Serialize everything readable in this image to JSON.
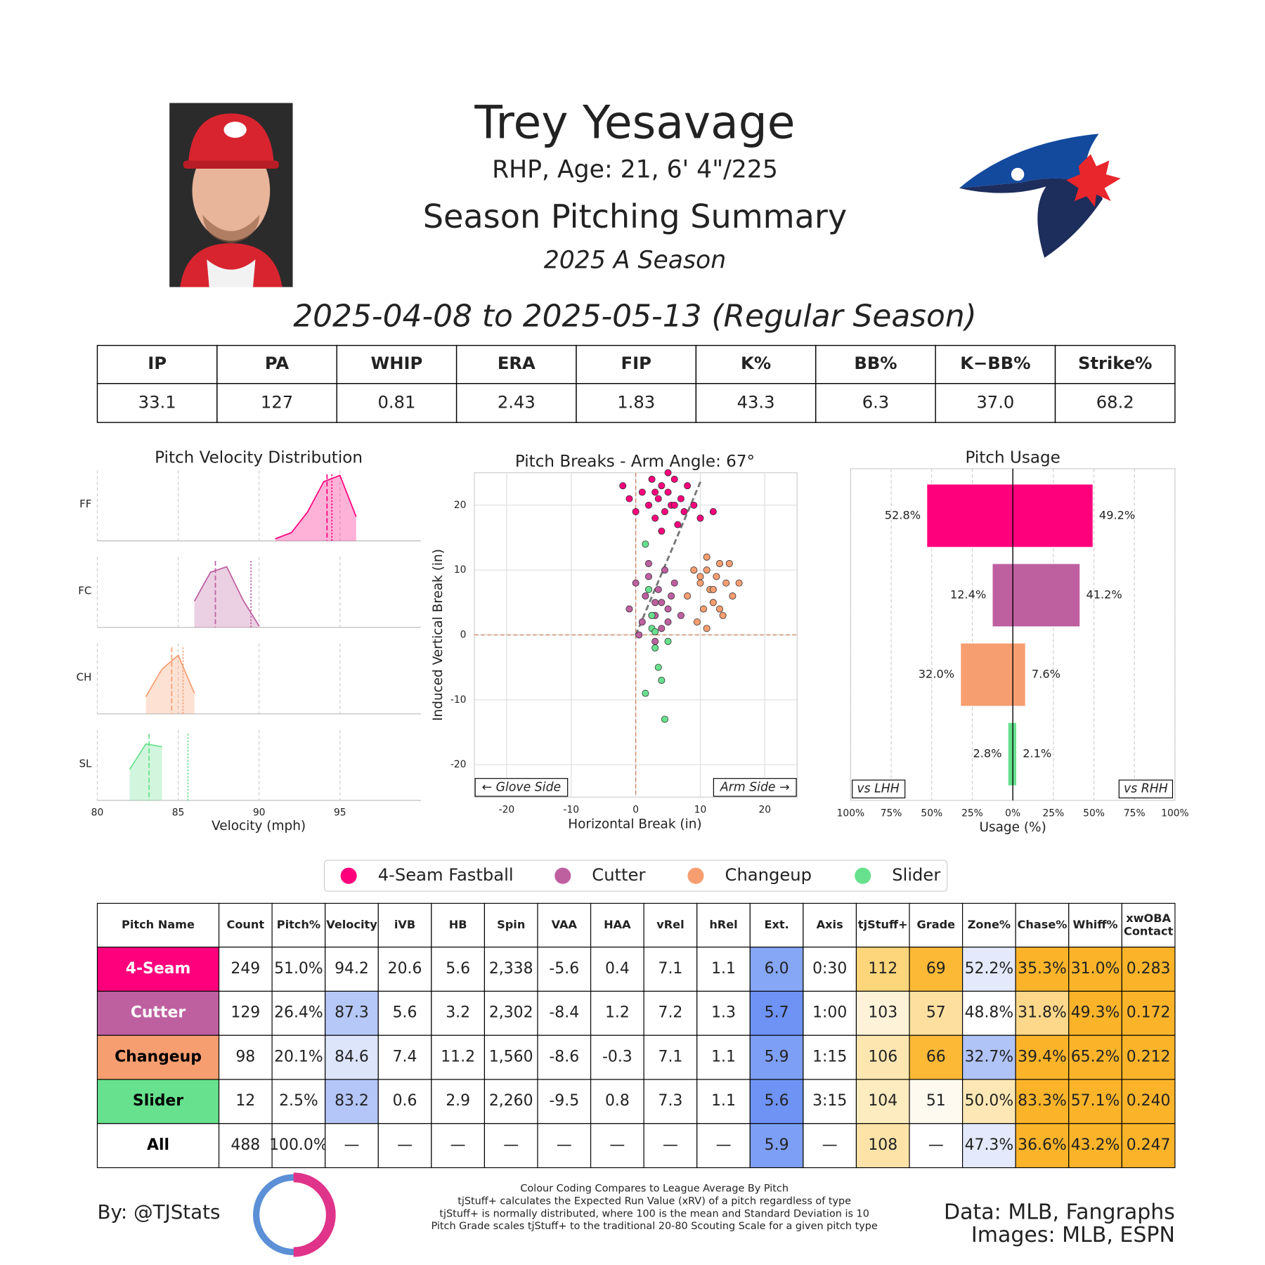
{
  "header": {
    "name": "Trey Yesavage",
    "bio": "RHP, Age: 21, 6' 4\"/225",
    "title": "Season Pitching Summary",
    "season": "2025 A Season",
    "dates": "2025-04-08 to 2025-05-13 (Regular Season)"
  },
  "stats_table": {
    "columns": [
      "IP",
      "PA",
      "WHIP",
      "ERA",
      "FIP",
      "K%",
      "BB%",
      "K−BB%",
      "Strike%"
    ],
    "values": [
      "33.1",
      "127",
      "0.81",
      "2.43",
      "1.83",
      "43.3",
      "6.3",
      "37.0",
      "68.2"
    ]
  },
  "chart_data": [
    {
      "type": "ridgeline",
      "title": "Pitch Velocity Distribution",
      "xlabel": "Velocity (mph)",
      "x": [
        80,
        81,
        82,
        83,
        84,
        85,
        86,
        87,
        88,
        89,
        90,
        91,
        92,
        93,
        94,
        95,
        96,
        97
      ],
      "xlim": [
        80,
        100
      ],
      "xticks": [
        80,
        85,
        90,
        95
      ],
      "grid": true,
      "series": [
        {
          "name": "FF",
          "color": "#ff007d",
          "values": [
            null,
            null,
            null,
            null,
            null,
            null,
            null,
            null,
            null,
            null,
            null,
            0.03,
            0.12,
            0.42,
            0.86,
            0.95,
            0.35,
            null
          ],
          "mean": 94.2,
          "league_mean": 94.5
        },
        {
          "name": "FC",
          "color": "#be5fa0",
          "values": [
            null,
            null,
            null,
            null,
            null,
            null,
            0.38,
            0.8,
            0.88,
            0.4,
            0.02,
            null,
            null,
            null,
            null,
            null,
            null,
            null
          ],
          "mean": 87.3,
          "league_mean": 89.5
        },
        {
          "name": "CH",
          "color": "#f79e70",
          "values": [
            null,
            null,
            null,
            0.25,
            0.65,
            0.85,
            0.3,
            null,
            null,
            null,
            null,
            null,
            null,
            null,
            null,
            null,
            null,
            null
          ],
          "mean": 84.6,
          "league_mean": 85.3
        },
        {
          "name": "SL",
          "color": "#67e18d",
          "values": [
            null,
            null,
            0.45,
            0.82,
            0.78,
            null,
            null,
            null,
            null,
            null,
            null,
            null,
            null,
            null,
            null,
            null,
            null,
            null
          ],
          "mean": 83.2,
          "league_mean": 85.6
        }
      ]
    },
    {
      "type": "scatter",
      "title": "Pitch Breaks - Arm Angle: 67°",
      "arm_angle": 67,
      "xlabel": "Horizontal Break (in)",
      "ylabel": "Induced Vertical Break (in)",
      "xlim": [
        -25,
        25
      ],
      "ylim": [
        -25,
        25
      ],
      "xticks": [
        -20,
        -10,
        0,
        10,
        20
      ],
      "yticks": [
        -20,
        -10,
        0,
        10,
        20
      ],
      "grid": true,
      "annotations": [
        "← Glove Side",
        "Arm Side →"
      ],
      "series": [
        {
          "name": "4-Seam Fastball",
          "color": "#ff007d",
          "x": [
            -2,
            -1,
            0,
            1,
            2,
            2.5,
            3,
            3.5,
            4,
            4.5,
            5,
            5.5,
            6,
            6.5,
            7,
            7.5,
            8,
            9,
            10,
            12,
            4,
            5,
            3,
            6
          ],
          "y": [
            23,
            21,
            19,
            22,
            20,
            24,
            18,
            21,
            23,
            19,
            22,
            20,
            24,
            17,
            21,
            19,
            23,
            20,
            18,
            19,
            16,
            25,
            22,
            20
          ]
        },
        {
          "name": "Cutter",
          "color": "#be5fa0",
          "x": [
            -1,
            0,
            1,
            1.5,
            2,
            2.5,
            3,
            3.5,
            4,
            4.5,
            5,
            5.5,
            6,
            7,
            3,
            2,
            4,
            0.5,
            5,
            3
          ],
          "y": [
            4,
            8,
            2,
            6,
            9,
            3,
            5,
            7,
            1,
            10,
            4,
            6,
            8,
            3,
            -1,
            11,
            5,
            0,
            2,
            3
          ]
        },
        {
          "name": "Changeup",
          "color": "#f79e70",
          "x": [
            8,
            9,
            10,
            10.5,
            11,
            11.5,
            12,
            12.5,
            13,
            13.5,
            14,
            15,
            9.5,
            12,
            11,
            13,
            10,
            14.5,
            16,
            11
          ],
          "y": [
            6,
            10,
            8,
            4,
            12,
            7,
            5,
            9,
            11,
            3,
            8,
            6,
            2,
            7,
            10,
            4,
            9,
            11,
            8,
            1
          ]
        },
        {
          "name": "Slider",
          "color": "#67e18d",
          "x": [
            1.5,
            2,
            2.5,
            3,
            3.5,
            4,
            4.5,
            2.5,
            1.5,
            5,
            3
          ],
          "y": [
            14,
            7,
            1,
            -2,
            -5,
            -7,
            -13,
            3,
            -9,
            -1,
            0.5
          ]
        }
      ]
    },
    {
      "type": "diverging_bar",
      "title": "Pitch Usage",
      "xlabel": "Usage (%)",
      "colors": [
        "#ff007d",
        "#be5fa0",
        "#f79e70",
        "#67e18d"
      ],
      "xlim": [
        -100,
        100
      ],
      "xticks": [
        {
          "value": -100,
          "label": "100%"
        },
        {
          "value": -75,
          "label": "75%"
        },
        {
          "value": -50,
          "label": "50%"
        },
        {
          "value": -25,
          "label": "25%"
        },
        {
          "value": 0,
          "label": "0%"
        },
        {
          "value": 25,
          "label": "25%"
        },
        {
          "value": 50,
          "label": "50%"
        },
        {
          "value": 75,
          "label": "75%"
        },
        {
          "value": 100,
          "label": "100%"
        }
      ],
      "grid": true,
      "series": [
        {
          "name": "vs LHH",
          "values": [
            52.8,
            12.4,
            32.0,
            2.8
          ],
          "value_labels": [
            "52.8%",
            "12.4%",
            "32.0%",
            "2.8%"
          ]
        },
        {
          "name": "vs RHH",
          "values": [
            49.2,
            41.2,
            7.6,
            2.1
          ],
          "value_labels": [
            "49.2%",
            "41.2%",
            "7.6%",
            "2.1%"
          ]
        }
      ]
    }
  ],
  "pitch_table": {
    "columns": [
      "Pitch Name",
      "Count",
      "Pitch%",
      "Velocity",
      "iVB",
      "HB",
      "Spin",
      "VAA",
      "HAA",
      "vRel",
      "hRel",
      "Ext.",
      "Axis",
      "tjStuff+",
      "Grade",
      "Zone%",
      "Chase%",
      "Whiff%",
      [
        "xwOBA",
        "Contact"
      ]
    ],
    "rows": [
      {
        "name_text_color": "#ffffff",
        "cells": [
          "4-Seam",
          "249",
          "51.0%",
          "94.2",
          "20.6",
          "5.6",
          "2,338",
          "-5.6",
          "0.4",
          "7.1",
          "1.1",
          "6.0",
          "0:30",
          "112",
          "69",
          "52.2%",
          "35.3%",
          "31.0%",
          "0.283"
        ],
        "colors": [
          "#ff007d",
          null,
          null,
          null,
          null,
          null,
          null,
          null,
          null,
          null,
          null,
          "#86a6f6",
          null,
          "#fdd57a",
          "#fbb936",
          "#e4eafb",
          "#fbb42a",
          "#fbb42a",
          "#fbb42a"
        ]
      },
      {
        "name_text_color": "#ffffff",
        "cells": [
          "Cutter",
          "129",
          "26.4%",
          "87.3",
          "5.6",
          "3.2",
          "2,302",
          "-8.4",
          "1.2",
          "7.2",
          "1.3",
          "5.7",
          "1:00",
          "103",
          "57",
          "48.8%",
          "31.8%",
          "49.3%",
          "0.172"
        ],
        "colors": [
          "#be5fa0",
          null,
          null,
          "#b6c8f8",
          null,
          null,
          null,
          null,
          null,
          null,
          null,
          "#6e93f5",
          null,
          "#fef3d8",
          "#fde0a0",
          null,
          "#fdd88a",
          "#fbb42a",
          "#fbb42a"
        ]
      },
      {
        "name_text_color": "#000000",
        "cells": [
          "Changeup",
          "98",
          "20.1%",
          "84.6",
          "7.4",
          "11.2",
          "1,560",
          "-8.6",
          "-0.3",
          "7.1",
          "1.1",
          "5.9",
          "1:15",
          "106",
          "66",
          "32.7%",
          "39.4%",
          "65.2%",
          "0.212"
        ],
        "colors": [
          "#f79e70",
          null,
          null,
          "#dde5fb",
          null,
          null,
          null,
          null,
          null,
          null,
          null,
          "#7d9ff6",
          null,
          "#fde6b0",
          "#fbb936",
          "#b1c4f8",
          "#fbb42a",
          "#fbb42a",
          "#fbb42a"
        ]
      },
      {
        "name_text_color": "#000000",
        "cells": [
          "Slider",
          "12",
          "2.5%",
          "83.2",
          "0.6",
          "2.9",
          "2,260",
          "-9.5",
          "0.8",
          "7.3",
          "1.1",
          "5.6",
          "3:15",
          "104",
          "51",
          "50.0%",
          "83.3%",
          "57.1%",
          "0.240"
        ],
        "colors": [
          "#67e18d",
          null,
          null,
          "#b4c6f8",
          null,
          null,
          null,
          null,
          null,
          null,
          null,
          "#6e93f5",
          null,
          "#fdecc0",
          "#fffaf0",
          "#fde8b5",
          "#fbb42a",
          "#fbb42a",
          "#fbb42a"
        ]
      },
      {
        "name_text_color": "#000000",
        "cells": [
          "All",
          "488",
          "100.0%",
          "—",
          "—",
          "—",
          "—",
          "—",
          "—",
          "—",
          "—",
          "5.9",
          "—",
          "108",
          "—",
          "47.3%",
          "36.6%",
          "43.2%",
          "0.247"
        ],
        "colors": [
          null,
          null,
          null,
          null,
          null,
          null,
          null,
          null,
          null,
          null,
          null,
          "#7d9ff6",
          null,
          "#fde3a8",
          null,
          "#e4eafb",
          "#fbb42a",
          "#fbb42a",
          "#fbb42a"
        ]
      }
    ]
  },
  "footer": {
    "author": "By: @TJStats",
    "notes": [
      "Colour Coding Compares to League Average By Pitch",
      "tjStuff+ calculates the Expected Run Value (xRV) of a pitch regardless of type",
      "tjStuff+ is normally distributed, where 100 is the mean and Standard Deviation is 10",
      "Pitch Grade scales tjStuff+ to the traditional 20-80 Scouting Scale for a given pitch type"
    ],
    "credits": [
      "Data: MLB, Fangraphs",
      "Images: MLB, ESPN"
    ]
  }
}
